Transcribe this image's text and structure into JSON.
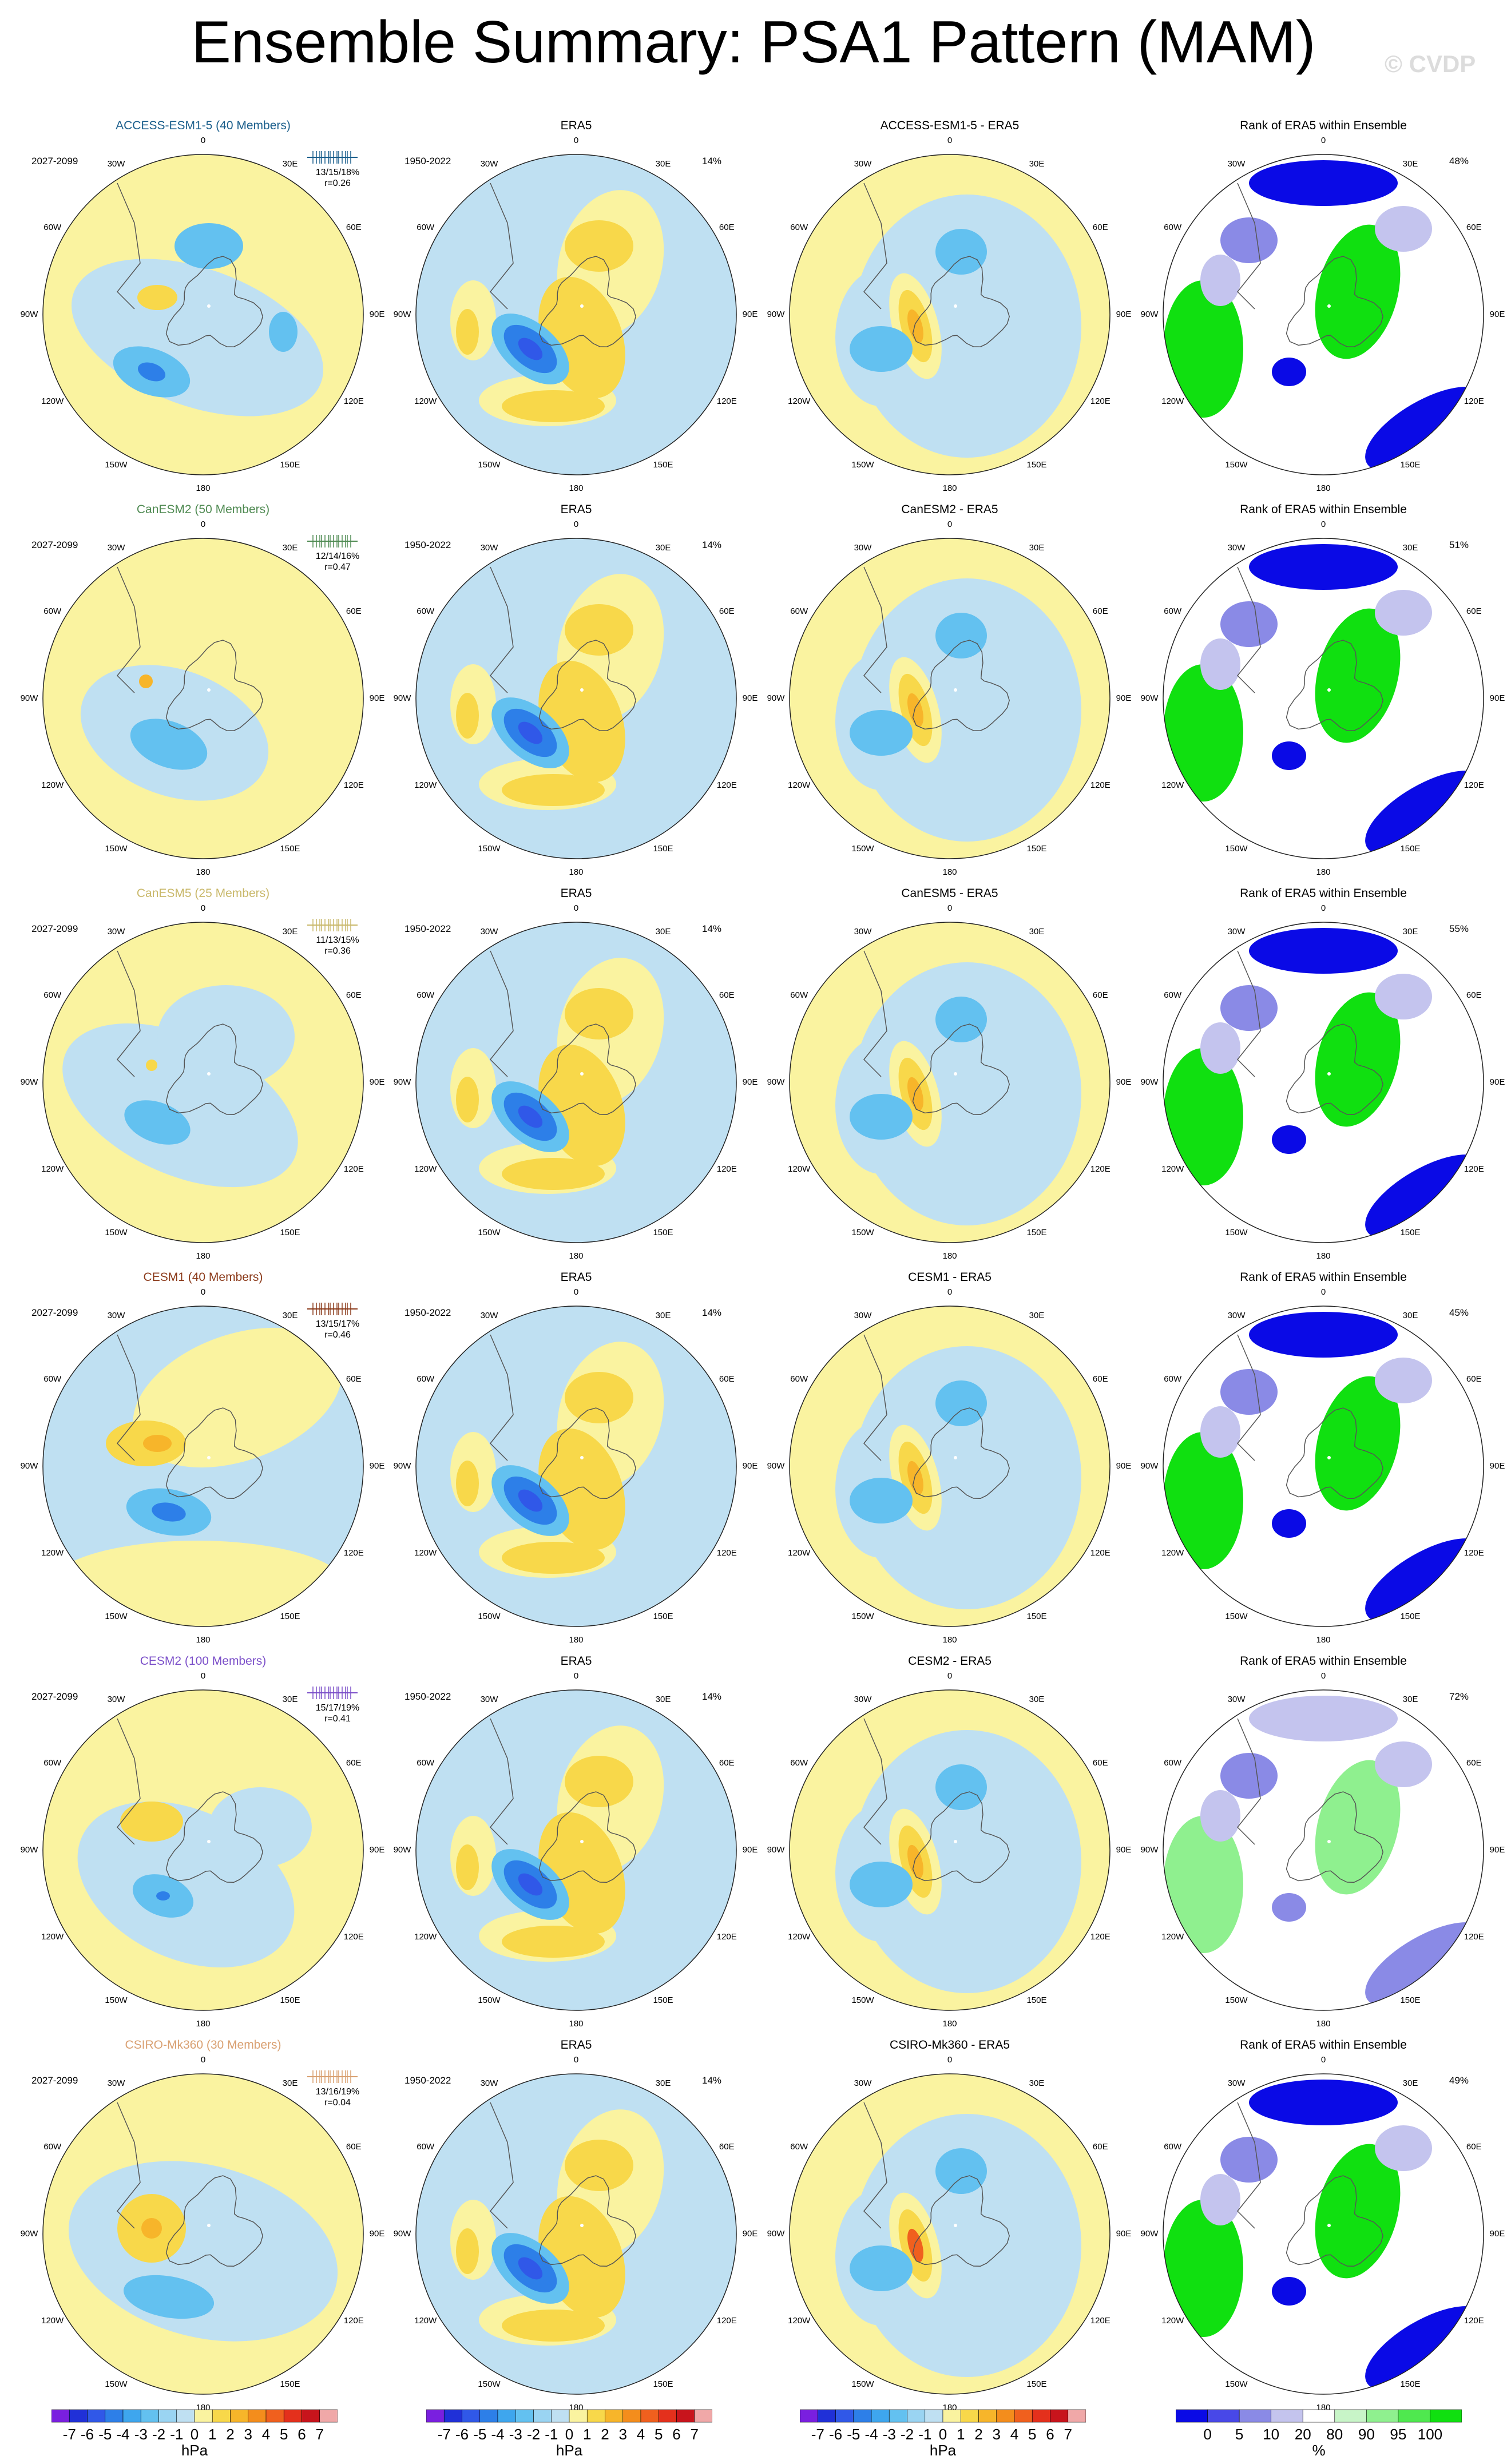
{
  "title": "Ensemble Summary: PSA1 Pattern (MAM)",
  "watermark": "© CVDP",
  "lon_labels": [
    "0",
    "30E",
    "60E",
    "90E",
    "120E",
    "150E",
    "180",
    "150W",
    "120W",
    "90W",
    "60W",
    "30W"
  ],
  "rows": [
    {
      "model": "ACCESS-ESM1-5 (40 Members)",
      "model_color": "#1b5f8c",
      "years": "2027-2099",
      "stats": "13/15/18%",
      "corr": "r=0.26",
      "obs_title": "ERA5",
      "obs_years": "1950-2022",
      "obs_pct": "14%",
      "diff_title": "ACCESS-ESM1-5 - ERA5",
      "rank_title": "Rank of ERA5 within Ensemble",
      "rank_pct": "48%"
    },
    {
      "model": "CanESM2 (50 Members)",
      "model_color": "#4f8a52",
      "years": "2027-2099",
      "stats": "12/14/16%",
      "corr": "r=0.47",
      "obs_title": "ERA5",
      "obs_years": "1950-2022",
      "obs_pct": "14%",
      "diff_title": "CanESM2 - ERA5",
      "rank_title": "Rank of ERA5 within Ensemble",
      "rank_pct": "51%"
    },
    {
      "model": "CanESM5 (25 Members)",
      "model_color": "#c9b86a",
      "years": "2027-2099",
      "stats": "11/13/15%",
      "corr": "r=0.36",
      "obs_title": "ERA5",
      "obs_years": "1950-2022",
      "obs_pct": "14%",
      "diff_title": "CanESM5 - ERA5",
      "rank_title": "Rank of ERA5 within Ensemble",
      "rank_pct": "55%"
    },
    {
      "model": "CESM1 (40 Members)",
      "model_color": "#8b3a1a",
      "years": "2027-2099",
      "stats": "13/15/17%",
      "corr": "r=0.46",
      "obs_title": "ERA5",
      "obs_years": "1950-2022",
      "obs_pct": "14%",
      "diff_title": "CESM1 - ERA5",
      "rank_title": "Rank of ERA5 within Ensemble",
      "rank_pct": "45%"
    },
    {
      "model": "CESM2 (100 Members)",
      "model_color": "#7b4fc9",
      "years": "2027-2099",
      "stats": "15/17/19%",
      "corr": "r=0.41",
      "obs_title": "ERA5",
      "obs_years": "1950-2022",
      "obs_pct": "14%",
      "diff_title": "CESM2 - ERA5",
      "rank_title": "Rank of ERA5 within Ensemble",
      "rank_pct": "72%"
    },
    {
      "model": "CSIRO-Mk360 (30 Members)",
      "model_color": "#d9a071",
      "years": "2027-2099",
      "stats": "13/16/19%",
      "corr": "r=0.04",
      "obs_title": "ERA5",
      "obs_years": "1950-2022",
      "obs_pct": "14%",
      "diff_title": "CSIRO-Mk360 - ERA5",
      "rank_title": "Rank of ERA5 within Ensemble",
      "rank_pct": "49%"
    }
  ],
  "hpa_colorbar": {
    "unit": "hPa",
    "ticks": [
      "-7",
      "-6",
      "-5",
      "-4",
      "-3",
      "-2",
      "-1",
      "0",
      "1",
      "2",
      "3",
      "4",
      "5",
      "6",
      "7"
    ],
    "colors": [
      "#7a1fe0",
      "#2030d8",
      "#3058e8",
      "#2d7fe8",
      "#3ea6ee",
      "#63c1f0",
      "#9ad4f2",
      "#bfe0f2",
      "#faf3a0",
      "#f8d84a",
      "#f7b52a",
      "#f48d1c",
      "#f0601e",
      "#e4301c",
      "#c8141c",
      "#f0a8a8"
    ]
  },
  "rank_colorbar": {
    "unit": "%",
    "ticks": [
      "0",
      "5",
      "10",
      "20",
      "80",
      "90",
      "95",
      "100"
    ],
    "colors": [
      "#0a0ae6",
      "#4848e8",
      "#8a8ae6",
      "#c4c4ee",
      "#ffffff",
      "#c8f5c8",
      "#8ff08f",
      "#4fe84f",
      "#10e010"
    ]
  },
  "chart_data": {
    "type": "heatmap",
    "title": "Ensemble Summary: PSA1 Pattern (MAM)",
    "projection": "south polar stereographic",
    "columns": [
      "ensemble pattern",
      "ERA5",
      "ensemble - ERA5",
      "Rank of ERA5 within Ensemble"
    ],
    "field_units": "hPa",
    "field_range": [
      -7,
      7
    ],
    "rank_units": "%",
    "rank_range": [
      0,
      100
    ],
    "variance_explained": [
      {
        "model": "ACCESS-ESM1-5",
        "pct": "13/15/18%",
        "r": 0.26,
        "era5_pct": "14%",
        "rank_pct": "48%"
      },
      {
        "model": "CanESM2",
        "pct": "12/14/16%",
        "r": 0.47,
        "era5_pct": "14%",
        "rank_pct": "51%"
      },
      {
        "model": "CanESM5",
        "pct": "11/13/15%",
        "r": 0.36,
        "era5_pct": "14%",
        "rank_pct": "55%"
      },
      {
        "model": "CESM1",
        "pct": "13/15/17%",
        "r": 0.46,
        "era5_pct": "14%",
        "rank_pct": "45%"
      },
      {
        "model": "CESM2",
        "pct": "15/17/19%",
        "r": 0.41,
        "era5_pct": "14%",
        "rank_pct": "72%"
      },
      {
        "model": "CSIRO-Mk360",
        "pct": "13/16/19%",
        "r": 0.04,
        "era5_pct": "14%",
        "rank_pct": "49%"
      }
    ]
  }
}
